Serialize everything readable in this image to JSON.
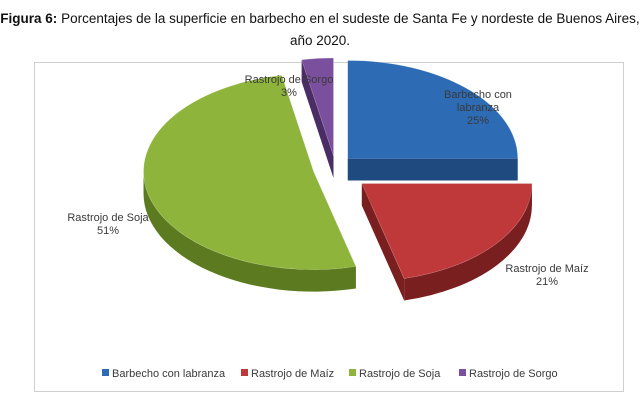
{
  "figure": {
    "label": "Figura 6:",
    "title_line1": " Porcentajes de la superficie en barbecho en el sudeste de Santa Fe y nordeste de Buenos Aires,",
    "title_line2": "año 2020."
  },
  "chart_data": {
    "type": "pie",
    "title": "Figura 6: Porcentajes de la superficie en barbecho en el sudeste de Santa Fe y nordeste de Buenos Aires, año 2020.",
    "legend_position": "bottom",
    "slices": [
      {
        "name": "Barbecho con labranza",
        "value": 25,
        "label_lines": [
          "Barbecho con",
          "labranza",
          "25%"
        ],
        "color": "#2e6bb5",
        "side": "#1f4a80"
      },
      {
        "name": "Rastrojo de Maíz",
        "value": 21,
        "label_lines": [
          "Rastrojo de Maíz",
          "21%"
        ],
        "color": "#c0393a",
        "side": "#7a1f20"
      },
      {
        "name": "Rastrojo de Soja",
        "value": 51,
        "label_lines": [
          "Rastrojo de Soja",
          "51%"
        ],
        "color": "#8fb43c",
        "side": "#5c7a1f"
      },
      {
        "name": "Rastrojo de Sorgo",
        "value": 3,
        "label_lines": [
          "Rastrojo de Sorgo",
          "3%"
        ],
        "color": "#7a4f9e",
        "side": "#4b2d66"
      }
    ]
  }
}
